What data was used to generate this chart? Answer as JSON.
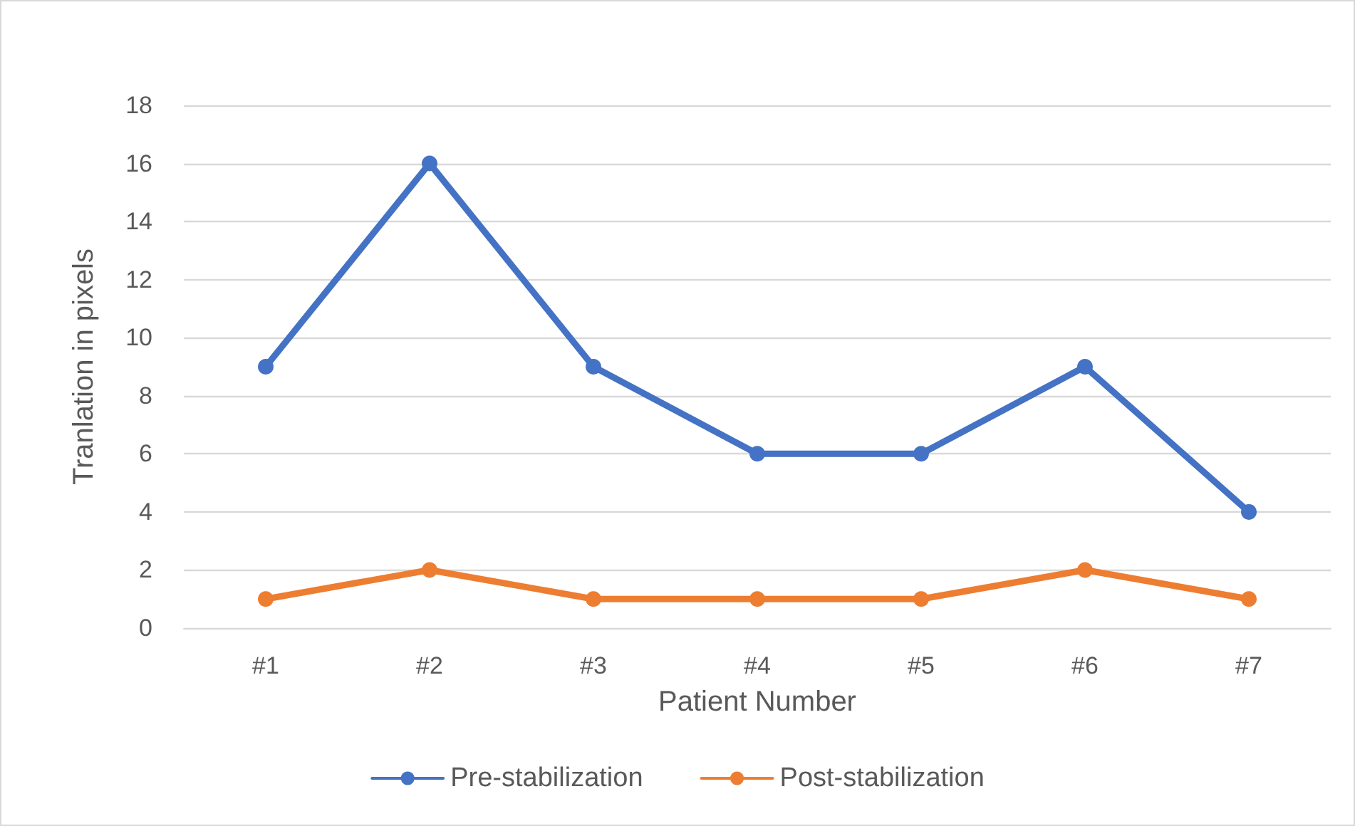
{
  "chart_data": {
    "type": "line",
    "xlabel": "Patient Number",
    "ylabel": "Tranlation in pixels",
    "categories": [
      "#1",
      "#2",
      "#3",
      "#4",
      "#5",
      "#6",
      "#7"
    ],
    "series": [
      {
        "name": "Pre-stabilization",
        "color": "#4472c4",
        "values": [
          9,
          16,
          9,
          6,
          6,
          9,
          4
        ]
      },
      {
        "name": "Post-stabilization",
        "color": "#ed7d31",
        "values": [
          1,
          2,
          1,
          1,
          1,
          2,
          1
        ]
      }
    ],
    "ylim": [
      0,
      18
    ],
    "yticks": [
      0,
      2,
      4,
      6,
      8,
      10,
      12,
      14,
      16,
      18
    ],
    "grid": "y",
    "legend": "bottom",
    "marker": "circle",
    "line_style": "solid"
  }
}
